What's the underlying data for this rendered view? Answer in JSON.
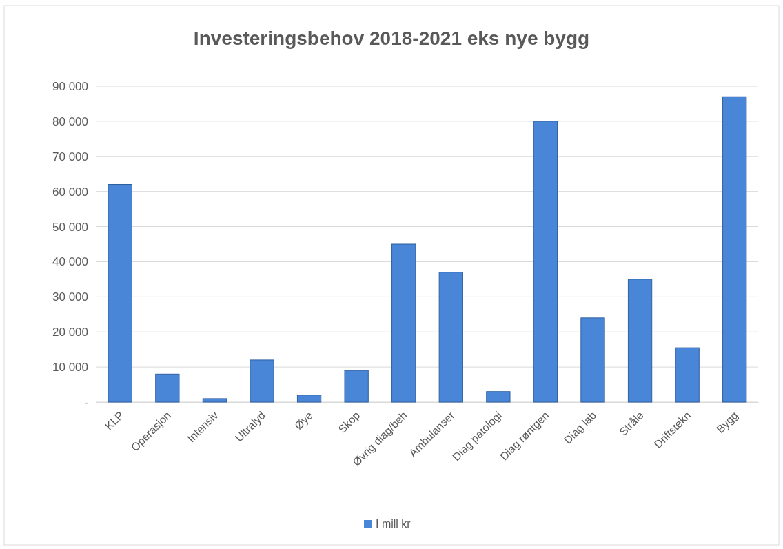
{
  "chart_data": {
    "type": "bar",
    "title": "Investeringsbehov 2018-2021 eks nye bygg",
    "categories": [
      "KLP",
      "Operasjon",
      "Intensiv",
      "Ultralyd",
      "Øye",
      "Skop",
      "Øvrig diag/beh",
      "Ambulanser",
      "Diag patologi",
      "Diag røntgen",
      "Diag lab",
      "Stråle",
      "Driftstekn",
      "Bygg"
    ],
    "series": [
      {
        "name": "I mill kr",
        "color": "#4a86d8",
        "values": [
          62000,
          8000,
          1000,
          12000,
          2000,
          9000,
          45000,
          37000,
          3000,
          80000,
          24000,
          35000,
          15500,
          87000
        ]
      }
    ],
    "ylim": [
      0,
      90000
    ],
    "yticks": [
      {
        "value": 0,
        "label": "-"
      },
      {
        "value": 10000,
        "label": "10 000"
      },
      {
        "value": 20000,
        "label": "20 000"
      },
      {
        "value": 30000,
        "label": "30 000"
      },
      {
        "value": 40000,
        "label": "40 000"
      },
      {
        "value": 50000,
        "label": "50 000"
      },
      {
        "value": 60000,
        "label": "60 000"
      },
      {
        "value": 70000,
        "label": "70 000"
      },
      {
        "value": 80000,
        "label": "80 000"
      },
      {
        "value": 90000,
        "label": "90 000"
      }
    ],
    "grid": true,
    "legend": "bottom"
  }
}
